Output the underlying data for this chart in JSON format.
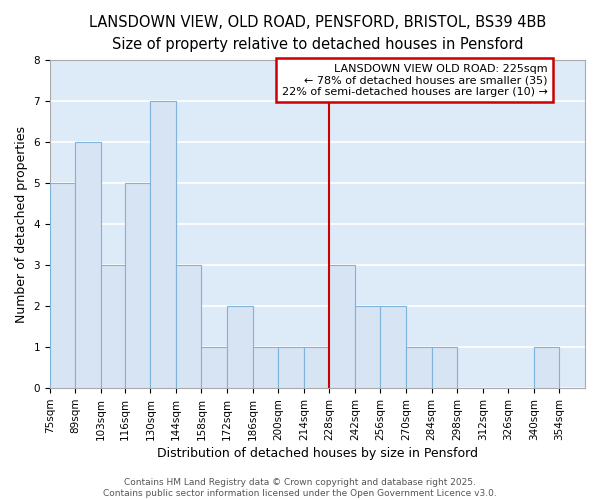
{
  "title_line1": "LANSDOWN VIEW, OLD ROAD, PENSFORD, BRISTOL, BS39 4BB",
  "title_line2": "Size of property relative to detached houses in Pensford",
  "xlabel": "Distribution of detached houses by size in Pensford",
  "ylabel": "Number of detached properties",
  "bar_left_edges": [
    75,
    89,
    103,
    116,
    130,
    144,
    158,
    172,
    186,
    200,
    214,
    228,
    242,
    256,
    270,
    284,
    298,
    312,
    326,
    340
  ],
  "bar_heights": [
    5,
    6,
    3,
    5,
    7,
    3,
    1,
    2,
    1,
    1,
    1,
    3,
    2,
    2,
    1,
    1,
    0,
    0,
    0,
    1
  ],
  "bar_widths": [
    14,
    14,
    13,
    14,
    14,
    14,
    14,
    14,
    14,
    14,
    14,
    14,
    14,
    14,
    14,
    14,
    14,
    14,
    14,
    14
  ],
  "tick_labels": [
    "75sqm",
    "89sqm",
    "103sqm",
    "116sqm",
    "130sqm",
    "144sqm",
    "158sqm",
    "172sqm",
    "186sqm",
    "200sqm",
    "214sqm",
    "228sqm",
    "242sqm",
    "256sqm",
    "270sqm",
    "284sqm",
    "298sqm",
    "312sqm",
    "326sqm",
    "340sqm",
    "354sqm"
  ],
  "tick_positions": [
    75,
    89,
    103,
    116,
    130,
    144,
    158,
    172,
    186,
    200,
    214,
    228,
    242,
    256,
    270,
    284,
    298,
    312,
    326,
    340,
    354
  ],
  "bar_color": "#d6e4f4",
  "bar_edge_color": "#7fb3d9",
  "vline_x": 228,
  "vline_color": "#cc0000",
  "ylim": [
    0,
    8
  ],
  "yticks": [
    0,
    1,
    2,
    3,
    4,
    5,
    6,
    7,
    8
  ],
  "annotation_title": "LANSDOWN VIEW OLD ROAD: 225sqm",
  "annotation_line1": "← 78% of detached houses are smaller (35)",
  "annotation_line2": "22% of semi-detached houses are larger (10) →",
  "annotation_box_color": "#cc0000",
  "plot_bg_color": "#ddeaf7",
  "fig_bg_color": "#ffffff",
  "grid_color": "#ffffff",
  "footer_text": "Contains HM Land Registry data © Crown copyright and database right 2025.\nContains public sector information licensed under the Open Government Licence v3.0.",
  "title_fontsize": 10.5,
  "subtitle_fontsize": 9.5,
  "axis_label_fontsize": 9,
  "tick_fontsize": 7.5,
  "footer_fontsize": 6.5
}
